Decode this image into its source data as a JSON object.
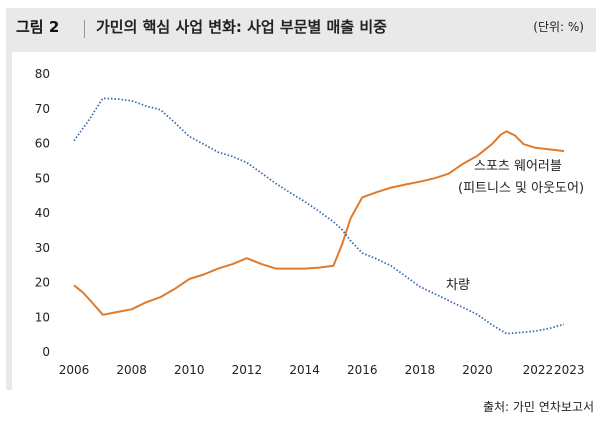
{
  "figure": {
    "number": "그림 2",
    "title": "가민의 핵심 사업 변화: 사업 부문별 매출 비중",
    "unit": "(단위: %)",
    "source": "출처: 가민 연차보고서"
  },
  "colors": {
    "sports": "#e07b2c",
    "vehicle": "#3d6aad",
    "frame": "#e9e9e9"
  },
  "chart_data": {
    "type": "line",
    "ylim": [
      0,
      80
    ],
    "yticks": [
      0,
      10,
      20,
      30,
      40,
      50,
      60,
      70,
      80
    ],
    "xlim": [
      2006,
      2023
    ],
    "xticks": [
      2006,
      2008,
      2010,
      2012,
      2014,
      2016,
      2018,
      2020,
      2022,
      2023
    ],
    "grid": false,
    "series": [
      {
        "key": "sports",
        "name": "스포츠 웨어러블",
        "name_line2": "(피트니스 및 아웃도어)",
        "style": "solid",
        "points": [
          [
            2006,
            19.2
          ],
          [
            2006.3,
            17.2
          ],
          [
            2006.6,
            14.5
          ],
          [
            2007,
            10.7
          ],
          [
            2007.5,
            11.5
          ],
          [
            2008,
            12.3
          ],
          [
            2008.5,
            14.3
          ],
          [
            2009,
            15.8
          ],
          [
            2009.5,
            18.2
          ],
          [
            2010,
            21.0
          ],
          [
            2010.5,
            22.3
          ],
          [
            2011,
            24.0
          ],
          [
            2011.5,
            25.3
          ],
          [
            2012,
            27.0
          ],
          [
            2012.5,
            25.3
          ],
          [
            2013,
            24.0
          ],
          [
            2013.5,
            24.0
          ],
          [
            2014,
            24.0
          ],
          [
            2014.5,
            24.3
          ],
          [
            2015,
            24.8
          ],
          [
            2015.3,
            31.0
          ],
          [
            2015.6,
            38.5
          ],
          [
            2016,
            44.5
          ],
          [
            2016.5,
            46.0
          ],
          [
            2017,
            47.3
          ],
          [
            2017.5,
            48.2
          ],
          [
            2018,
            49.0
          ],
          [
            2018.5,
            50.0
          ],
          [
            2019,
            51.3
          ],
          [
            2019.5,
            54.2
          ],
          [
            2020,
            56.5
          ],
          [
            2020.5,
            59.8
          ],
          [
            2020.8,
            62.5
          ],
          [
            2021,
            63.5
          ],
          [
            2021.3,
            62.3
          ],
          [
            2021.6,
            59.8
          ],
          [
            2022,
            58.8
          ],
          [
            2022.5,
            58.3
          ],
          [
            2023,
            57.8
          ]
        ]
      },
      {
        "key": "vehicle",
        "name": "차량",
        "style": "dotted",
        "points": [
          [
            2006,
            60.8
          ],
          [
            2006.5,
            66.5
          ],
          [
            2007,
            73.0
          ],
          [
            2007.5,
            72.8
          ],
          [
            2008,
            72.3
          ],
          [
            2008.5,
            70.8
          ],
          [
            2009,
            69.7
          ],
          [
            2009.5,
            66.0
          ],
          [
            2010,
            62.0
          ],
          [
            2010.5,
            59.8
          ],
          [
            2011,
            57.5
          ],
          [
            2011.5,
            56.3
          ],
          [
            2012,
            54.5
          ],
          [
            2012.5,
            51.5
          ],
          [
            2013,
            48.5
          ],
          [
            2013.5,
            45.8
          ],
          [
            2014,
            43.3
          ],
          [
            2014.5,
            40.5
          ],
          [
            2015,
            37.5
          ],
          [
            2015.3,
            35.2
          ],
          [
            2015.6,
            32.0
          ],
          [
            2016,
            28.5
          ],
          [
            2016.5,
            26.8
          ],
          [
            2017,
            24.8
          ],
          [
            2017.5,
            21.8
          ],
          [
            2018,
            18.8
          ],
          [
            2018.5,
            16.8
          ],
          [
            2019,
            14.8
          ],
          [
            2019.5,
            12.8
          ],
          [
            2020,
            10.8
          ],
          [
            2020.5,
            7.8
          ],
          [
            2021,
            5.3
          ],
          [
            2021.5,
            5.6
          ],
          [
            2022,
            6.0
          ],
          [
            2022.5,
            6.8
          ],
          [
            2023,
            8.0
          ]
        ]
      }
    ]
  }
}
